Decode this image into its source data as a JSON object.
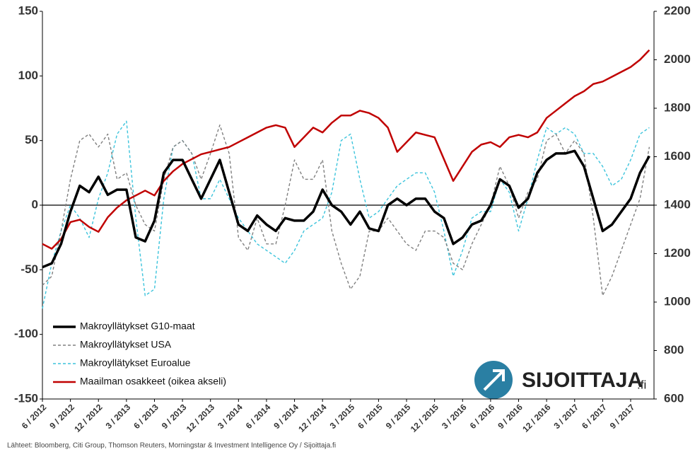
{
  "chart_data": {
    "type": "line",
    "categories": [
      "6 / 2012",
      null,
      null,
      "9 / 2012",
      null,
      null,
      "12 / 2012",
      null,
      null,
      "3 / 2013",
      null,
      null,
      "6 / 2013",
      null,
      null,
      "9 / 2013",
      null,
      null,
      "12 / 2013",
      null,
      null,
      "3 / 2014",
      null,
      null,
      "6 / 2014",
      null,
      null,
      "9 / 2014",
      null,
      null,
      "12 / 2014",
      null,
      null,
      "3 / 2015",
      null,
      null,
      "6 / 2015",
      null,
      null,
      "9 / 2015",
      null,
      null,
      "12 / 2015",
      null,
      null,
      "3 / 2016",
      null,
      null,
      "6 / 2016",
      null,
      null,
      "9 / 2016",
      null,
      null,
      "12 / 2016",
      null,
      null,
      "3 / 2017",
      null,
      null,
      "6 / 2017",
      null,
      null,
      "9 / 2017",
      null,
      null
    ],
    "series": [
      {
        "name": "Makroyllätykset G10-maat",
        "color": "#000000",
        "dash": false,
        "width": 3.5,
        "values": [
          -48,
          -45,
          -30,
          -5,
          15,
          10,
          22,
          8,
          12,
          12,
          -25,
          -28,
          -12,
          25,
          35,
          35,
          20,
          5,
          20,
          35,
          10,
          -15,
          -20,
          -8,
          -15,
          -20,
          -10,
          -12,
          -12,
          -5,
          12,
          0,
          -5,
          -15,
          -5,
          -18,
          -20,
          0,
          5,
          0,
          5,
          5,
          -5,
          -10,
          -30,
          -25,
          -15,
          -12,
          0,
          20,
          15,
          -2,
          5,
          25,
          35,
          40,
          40,
          42,
          30,
          5,
          -20,
          -15,
          -5,
          5,
          25,
          38
        ]
      },
      {
        "name": "Makroyllätykset USA",
        "color": "#808080",
        "dash": true,
        "width": 1.4,
        "values": [
          -62,
          -55,
          -20,
          20,
          50,
          55,
          45,
          55,
          20,
          25,
          0,
          -15,
          -20,
          20,
          45,
          50,
          40,
          20,
          40,
          62,
          40,
          -25,
          -35,
          -10,
          -30,
          -30,
          0,
          35,
          20,
          20,
          35,
          -20,
          -45,
          -65,
          -55,
          -20,
          -20,
          -10,
          -20,
          -30,
          -35,
          -20,
          -20,
          -25,
          -45,
          -50,
          -30,
          -15,
          0,
          30,
          15,
          -10,
          10,
          20,
          50,
          55,
          40,
          50,
          40,
          -10,
          -70,
          -55,
          -35,
          -15,
          5,
          45
        ]
      },
      {
        "name": "Makroyllätykset Euroalue",
        "color": "#3cc4dc",
        "dash": true,
        "width": 1.4,
        "values": [
          -80,
          -45,
          -20,
          0,
          -10,
          -25,
          5,
          25,
          55,
          65,
          -10,
          -70,
          -65,
          5,
          45,
          50,
          40,
          5,
          5,
          20,
          5,
          -10,
          -20,
          -30,
          -35,
          -40,
          -45,
          -35,
          -20,
          -15,
          -10,
          10,
          50,
          55,
          20,
          -10,
          -5,
          5,
          15,
          20,
          25,
          25,
          10,
          -20,
          -55,
          -35,
          -10,
          -5,
          -5,
          20,
          10,
          -20,
          5,
          35,
          60,
          55,
          60,
          55,
          40,
          40,
          30,
          15,
          20,
          35,
          55,
          60
        ]
      },
      {
        "name": "Maailman osakkeet (oikea akseli)",
        "color": "#c00000",
        "dash": false,
        "width": 2.5,
        "axis": "y2",
        "values": [
          1240,
          1220,
          1260,
          1330,
          1340,
          1310,
          1290,
          1350,
          1390,
          1420,
          1440,
          1460,
          1440,
          1500,
          1540,
          1570,
          1590,
          1610,
          1620,
          1630,
          1640,
          1660,
          1680,
          1700,
          1720,
          1730,
          1720,
          1640,
          1680,
          1720,
          1700,
          1740,
          1770,
          1770,
          1790,
          1780,
          1760,
          1720,
          1620,
          1660,
          1700,
          1690,
          1680,
          1590,
          1500,
          1560,
          1620,
          1650,
          1660,
          1640,
          1680,
          1690,
          1680,
          1700,
          1760,
          1790,
          1820,
          1850,
          1870,
          1900,
          1910,
          1930,
          1950,
          1970,
          2000,
          2040
        ]
      }
    ],
    "ylim": [
      -150,
      150
    ],
    "yticks": [
      -150,
      -100,
      -50,
      0,
      50,
      100,
      150
    ],
    "y2lim": [
      600,
      2200
    ],
    "y2ticks": [
      600,
      800,
      1000,
      1200,
      1400,
      1600,
      1800,
      2000,
      2200
    ],
    "legend": "lower left",
    "source": "Lähteet: Bloomberg, Citi Group, Thomson Reuters, Morningstar & Investment Intelligence Oy / Sijoittaja.fi"
  },
  "logo": {
    "text": "SIJOITTAJA",
    "suffix": ".fi"
  }
}
